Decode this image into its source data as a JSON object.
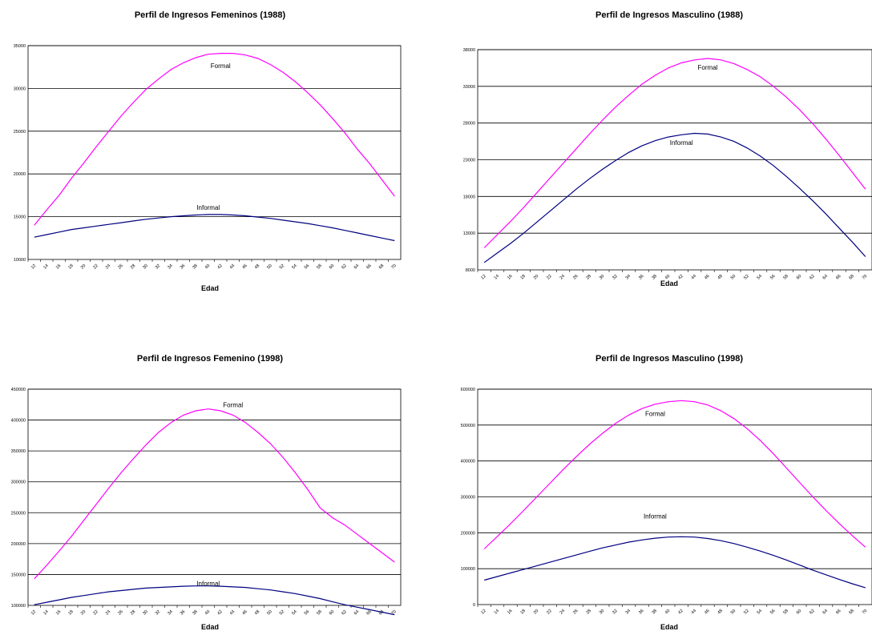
{
  "chart_data": [
    {
      "type": "line",
      "title": "Perfil de Ingresos Femeninos (1988)",
      "xlabel": "Edad",
      "ylabel": "",
      "x": [
        12,
        14,
        16,
        18,
        20,
        22,
        24,
        26,
        28,
        30,
        32,
        34,
        36,
        38,
        40,
        42,
        44,
        46,
        48,
        50,
        52,
        54,
        56,
        58,
        60,
        62,
        64,
        66,
        68,
        70
      ],
      "ylim": [
        10000,
        35000
      ],
      "yticks": [
        10000,
        15000,
        20000,
        25000,
        30000,
        35000
      ],
      "grid": true,
      "series": [
        {
          "name": "Formal",
          "color": "#ff00ff",
          "values": [
            14000,
            15800,
            17500,
            19500,
            21300,
            23200,
            25000,
            26800,
            28400,
            29900,
            31100,
            32200,
            33000,
            33600,
            34000,
            34100,
            34100,
            33900,
            33500,
            32800,
            31900,
            30800,
            29500,
            28100,
            26500,
            24800,
            22900,
            21200,
            19300,
            17400
          ]
        },
        {
          "name": "Informal",
          "color": "#000080",
          "values": [
            12600,
            12900,
            13200,
            13500,
            13700,
            13900,
            14100,
            14300,
            14500,
            14700,
            14850,
            15000,
            15100,
            15200,
            15250,
            15250,
            15200,
            15100,
            14950,
            14800,
            14600,
            14400,
            14200,
            13950,
            13700,
            13400,
            13100,
            12800,
            12500,
            12200
          ]
        }
      ],
      "annotations": [
        {
          "text": "Formal",
          "x": 42,
          "y": 32400
        },
        {
          "text": "Informal",
          "x": 40,
          "y": 15800
        }
      ]
    },
    {
      "type": "line",
      "title": "Perfil de Ingresos Masculino (1988)",
      "xlabel": "Edad",
      "ylabel": "",
      "x": [
        12,
        14,
        16,
        18,
        20,
        22,
        24,
        26,
        28,
        30,
        32,
        34,
        36,
        38,
        40,
        42,
        44,
        46,
        48,
        50,
        52,
        54,
        56,
        58,
        60,
        62,
        64,
        66,
        68,
        70
      ],
      "ylim": [
        8000,
        38000
      ],
      "yticks": [
        8000,
        13000,
        18000,
        23000,
        28000,
        33000,
        38000
      ],
      "grid": true,
      "series": [
        {
          "name": "Formal",
          "color": "#ff00ff",
          "values": [
            11000,
            12800,
            14600,
            16500,
            18500,
            20500,
            22500,
            24500,
            26500,
            28400,
            30200,
            31800,
            33300,
            34500,
            35500,
            36200,
            36600,
            36800,
            36600,
            36100,
            35300,
            34300,
            33000,
            31500,
            29800,
            27900,
            25800,
            23600,
            21300,
            19000
          ]
        },
        {
          "name": "Informal",
          "color": "#000080",
          "values": [
            9000,
            10300,
            11600,
            13000,
            14500,
            16000,
            17500,
            19000,
            20400,
            21700,
            22900,
            24000,
            24900,
            25600,
            26100,
            26400,
            26600,
            26500,
            26100,
            25500,
            24600,
            23500,
            22200,
            20700,
            19100,
            17400,
            15600,
            13700,
            11800,
            9800
          ]
        }
      ],
      "annotations": [
        {
          "text": "Formal",
          "x": 46,
          "y": 35300
        },
        {
          "text": "Informal",
          "x": 42,
          "y": 25000
        }
      ]
    },
    {
      "type": "line",
      "title": "Perfil de Ingresos Femenino (1998)",
      "xlabel": "Edad",
      "ylabel": "",
      "x": [
        12,
        14,
        16,
        18,
        20,
        22,
        24,
        26,
        28,
        30,
        32,
        34,
        36,
        38,
        40,
        42,
        44,
        46,
        48,
        50,
        52,
        54,
        56,
        58,
        60,
        62,
        64,
        66,
        68,
        70
      ],
      "ylim": [
        100000,
        450000
      ],
      "yticks": [
        100000,
        150000,
        200000,
        250000,
        300000,
        350000,
        400000,
        450000
      ],
      "grid": true,
      "series": [
        {
          "name": "Formal",
          "color": "#ff00ff",
          "values": [
            143000,
            165000,
            188000,
            212000,
            238000,
            264000,
            290000,
            315000,
            338000,
            360000,
            380000,
            396000,
            408000,
            415000,
            418000,
            415000,
            408000,
            396000,
            380000,
            362000,
            340000,
            315000,
            288000,
            258000,
            242000,
            230000,
            215000,
            200000,
            185000,
            170000
          ]
        },
        {
          "name": "Informal",
          "color": "#000080",
          "values": [
            101000,
            105000,
            109000,
            113000,
            116000,
            119000,
            122000,
            124000,
            126000,
            128000,
            129000,
            130000,
            131000,
            131500,
            131500,
            131000,
            130000,
            129000,
            127000,
            125000,
            122000,
            119000,
            115000,
            111000,
            106000,
            101000,
            97000,
            93000,
            89000,
            85000
          ]
        }
      ],
      "annotations": [
        {
          "text": "Formal",
          "x": 44,
          "y": 421000
        },
        {
          "text": "Informal",
          "x": 40,
          "y": 132000
        }
      ]
    },
    {
      "type": "line",
      "title": "Perfil de Ingresos Masculino (1998)",
      "xlabel": "Edad",
      "ylabel": "",
      "x": [
        12,
        14,
        16,
        18,
        20,
        22,
        24,
        26,
        28,
        30,
        32,
        34,
        36,
        38,
        40,
        42,
        44,
        46,
        48,
        50,
        52,
        54,
        56,
        58,
        60,
        62,
        64,
        66,
        68,
        70
      ],
      "ylim": [
        0,
        600000
      ],
      "yticks": [
        0,
        100000,
        200000,
        300000,
        400000,
        500000,
        600000
      ],
      "grid": true,
      "series": [
        {
          "name": "Formal",
          "color": "#ff00ff",
          "values": [
            155000,
            190000,
            225000,
            262000,
            300000,
            338000,
            376000,
            412000,
            446000,
            477000,
            505000,
            528000,
            546000,
            558000,
            565000,
            568000,
            565000,
            556000,
            540000,
            518000,
            490000,
            457000,
            420000,
            380000,
            340000,
            300000,
            262000,
            226000,
            192000,
            160000
          ]
        },
        {
          "name": "Informal",
          "color": "#000080",
          "values": [
            68000,
            78000,
            88000,
            98000,
            108000,
            118000,
            128000,
            138000,
            148000,
            158000,
            166000,
            174000,
            180000,
            185000,
            188000,
            189000,
            188000,
            184000,
            178000,
            170000,
            160000,
            149000,
            137000,
            124000,
            110000,
            96000,
            83000,
            70000,
            58000,
            47000
          ]
        }
      ],
      "annotations": [
        {
          "text": "Formal",
          "x": 38,
          "y": 525000
        },
        {
          "text": "Informal",
          "x": 38,
          "y": 240000
        }
      ]
    }
  ]
}
